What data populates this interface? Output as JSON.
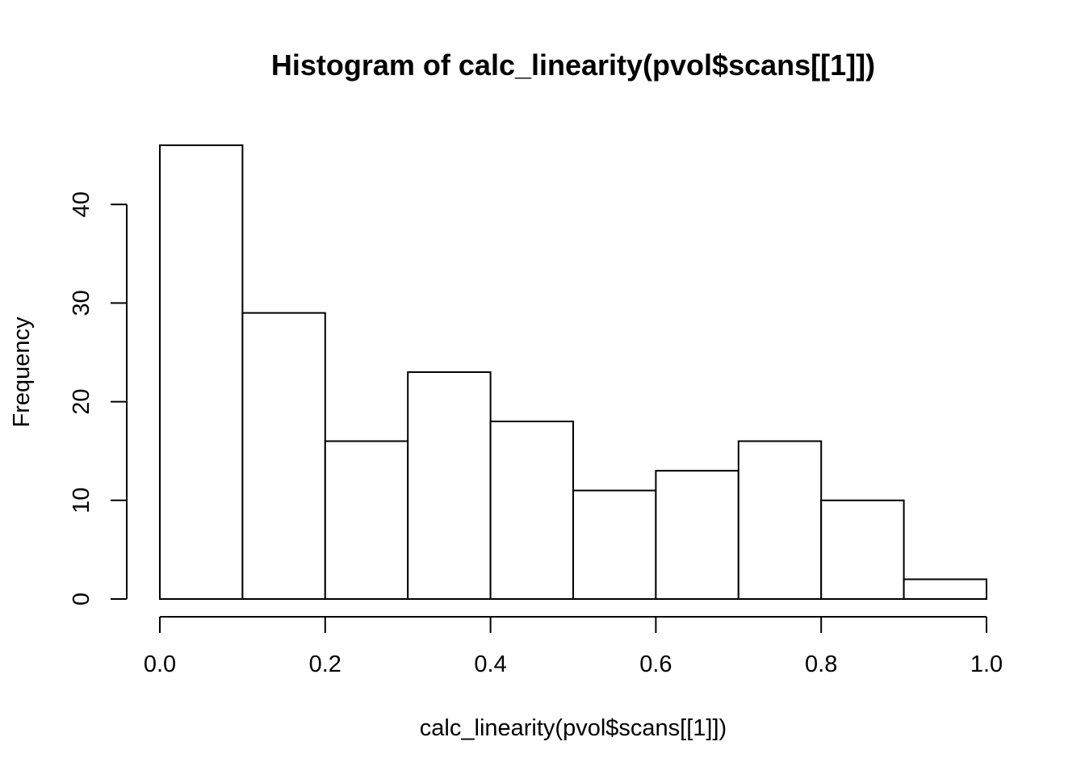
{
  "chart_data": {
    "type": "bar",
    "subtype": "histogram",
    "title": "Histogram of calc_linearity(pvol$scans[[1]])",
    "xlabel": "calc_linearity(pvol$scans[[1]])",
    "ylabel": "Frequency",
    "bin_edges": [
      0.0,
      0.1,
      0.2,
      0.3,
      0.4,
      0.5,
      0.6,
      0.7,
      0.8,
      0.9,
      1.0
    ],
    "values": [
      46,
      29,
      16,
      23,
      18,
      11,
      13,
      16,
      10,
      2
    ],
    "xlim": [
      0.0,
      1.0
    ],
    "ylim": [
      0,
      46
    ],
    "x_ticks": [
      0.0,
      0.2,
      0.4,
      0.6,
      0.8,
      1.0
    ],
    "x_tick_labels": [
      "0.0",
      "0.2",
      "0.4",
      "0.6",
      "0.8",
      "1.0"
    ],
    "y_ticks": [
      0,
      10,
      20,
      30,
      40
    ],
    "y_tick_labels": [
      "0",
      "10",
      "20",
      "30",
      "40"
    ],
    "grid": false,
    "legend": "none",
    "colors": {
      "bar_fill": "#ffffff",
      "bar_stroke": "#000000",
      "background": "#ffffff"
    }
  }
}
